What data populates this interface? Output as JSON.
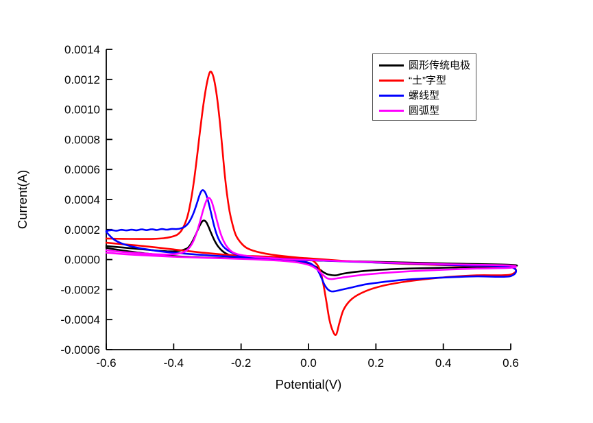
{
  "chart_data": {
    "type": "line",
    "title": "",
    "xlabel": "Potential(V)",
    "ylabel": "Current(A)",
    "xlim": [
      -0.6,
      0.6
    ],
    "ylim": [
      -0.0006,
      0.0014
    ],
    "grid": false,
    "legend_position": "top-right-inside",
    "x_ticks": [
      -0.6,
      -0.4,
      -0.2,
      0.0,
      0.2,
      0.4,
      0.6
    ],
    "x_tick_labels": [
      "-0.6",
      "-0.4",
      "-0.2",
      "0.0",
      "0.2",
      "0.4",
      "0.6"
    ],
    "y_ticks": [
      0.0014,
      0.0012,
      0.001,
      0.0008,
      0.0006,
      0.0004,
      0.0002,
      0.0,
      -0.0002,
      -0.0004,
      -0.0006
    ],
    "y_tick_labels": [
      "0.0014",
      "0.0012",
      "0.0010",
      "0.0008",
      "0.0006",
      "0.0004",
      "0.0002",
      "0.0000",
      "-0.0002",
      "-0.0004",
      "-0.0006"
    ],
    "axis_color": "#000000",
    "background": "#ffffff",
    "series": [
      {
        "id": "circular-traditional-electrode",
        "name": "圆形传统电极",
        "color": "#000000",
        "anodic_peak": {
          "x": -0.31,
          "y": 0.00026
        },
        "cathodic_peak": {
          "x": 0.08,
          "y": -0.000105
        },
        "points": [
          [
            -0.6,
            9e-05
          ],
          [
            -0.55,
            8e-05
          ],
          [
            -0.5,
            7e-05
          ],
          [
            -0.45,
            6e-05
          ],
          [
            -0.42,
            5.5e-05
          ],
          [
            -0.4,
            5.5e-05
          ],
          [
            -0.38,
            6e-05
          ],
          [
            -0.36,
            7.5e-05
          ],
          [
            -0.35,
            0.0001
          ],
          [
            -0.34,
            0.00014
          ],
          [
            -0.331,
            0.000185
          ],
          [
            -0.323,
            0.000225
          ],
          [
            -0.316,
            0.000252
          ],
          [
            -0.31,
            0.00026
          ],
          [
            -0.303,
            0.000248
          ],
          [
            -0.296,
            0.000215
          ],
          [
            -0.288,
            0.000172
          ],
          [
            -0.279,
            0.000128
          ],
          [
            -0.269,
            9e-05
          ],
          [
            -0.258,
            6.2e-05
          ],
          [
            -0.246,
            4.2e-05
          ],
          [
            -0.232,
            2.8e-05
          ],
          [
            -0.215,
            1.8e-05
          ],
          [
            -0.19,
            1.2e-05
          ],
          [
            -0.15,
            8e-06
          ],
          [
            -0.1,
            3e-06
          ],
          [
            -0.05,
            0.0
          ],
          [
            0.0,
            -5e-06
          ],
          [
            0.1,
            -1e-05
          ],
          [
            0.2,
            -1.5e-05
          ],
          [
            0.3,
            -2e-05
          ],
          [
            0.45,
            -2.8e-05
          ],
          [
            0.6,
            -3.5e-05
          ],
          [
            0.6,
            -4.5e-05
          ],
          [
            0.45,
            -5.2e-05
          ],
          [
            0.3,
            -6e-05
          ],
          [
            0.2,
            -7e-05
          ],
          [
            0.14,
            -8.2e-05
          ],
          [
            0.1,
            -9.5e-05
          ],
          [
            0.082,
            -0.000105
          ],
          [
            0.06,
            -0.0001
          ],
          [
            0.045,
            -8.5e-05
          ],
          [
            0.03,
            -6e-05
          ],
          [
            0.015,
            -4e-05
          ],
          [
            0.0,
            -2.5e-05
          ],
          [
            -0.05,
            -1e-05
          ],
          [
            -0.1,
            -2e-06
          ],
          [
            -0.15,
            3e-06
          ],
          [
            -0.22,
            8e-06
          ],
          [
            -0.3,
            1.3e-05
          ],
          [
            -0.38,
            2e-05
          ],
          [
            -0.45,
            3.3e-05
          ],
          [
            -0.5,
            4.5e-05
          ],
          [
            -0.55,
            6e-05
          ],
          [
            -0.58,
            7e-05
          ],
          [
            -0.6,
            7.8e-05
          ]
        ]
      },
      {
        "id": "cross-type",
        "name": "“土”字型",
        "color": "#ff0000",
        "anodic_peak": {
          "x": -0.292,
          "y": 0.00125
        },
        "cathodic_peak": {
          "x": 0.08,
          "y": -0.0005
        },
        "points": [
          [
            -0.6,
            0.00014
          ],
          [
            -0.55,
            0.000138
          ],
          [
            -0.5,
            0.000137
          ],
          [
            -0.46,
            0.000138
          ],
          [
            -0.43,
            0.000142
          ],
          [
            -0.41,
            0.00015
          ],
          [
            -0.39,
            0.000165
          ],
          [
            -0.375,
            0.0002
          ],
          [
            -0.36,
            0.00028
          ],
          [
            -0.35,
            0.00038
          ],
          [
            -0.34,
            0.00052
          ],
          [
            -0.33,
            0.0007
          ],
          [
            -0.32,
            0.00089
          ],
          [
            -0.31,
            0.00106
          ],
          [
            -0.3,
            0.00119
          ],
          [
            -0.292,
            0.00125
          ],
          [
            -0.284,
            0.00123
          ],
          [
            -0.276,
            0.00115
          ],
          [
            -0.267,
            0.001
          ],
          [
            -0.258,
            0.0008
          ],
          [
            -0.25,
            0.0006
          ],
          [
            -0.242,
            0.00044
          ],
          [
            -0.234,
            0.00032
          ],
          [
            -0.225,
            0.00023
          ],
          [
            -0.215,
            0.00016
          ],
          [
            -0.2,
            0.00011
          ],
          [
            -0.185,
            8e-05
          ],
          [
            -0.165,
            6e-05
          ],
          [
            -0.14,
            4.5e-05
          ],
          [
            -0.11,
            3.3e-05
          ],
          [
            -0.07,
            2.2e-05
          ],
          [
            -0.03,
            1.3e-05
          ],
          [
            0.0,
            8e-06
          ],
          [
            0.05,
            0.0
          ],
          [
            0.1,
            -8e-06
          ],
          [
            0.2,
            -2e-05
          ],
          [
            0.3,
            -3e-05
          ],
          [
            0.45,
            -4e-05
          ],
          [
            0.6,
            -5e-05
          ],
          [
            0.6,
            -0.0001
          ],
          [
            0.5,
            -0.000105
          ],
          [
            0.42,
            -0.000115
          ],
          [
            0.35,
            -0.00013
          ],
          [
            0.28,
            -0.00015
          ],
          [
            0.22,
            -0.000175
          ],
          [
            0.17,
            -0.00021
          ],
          [
            0.13,
            -0.00026
          ],
          [
            0.105,
            -0.00033
          ],
          [
            0.092,
            -0.00042
          ],
          [
            0.082,
            -0.0005
          ],
          [
            0.072,
            -0.000475
          ],
          [
            0.062,
            -0.0004
          ],
          [
            0.053,
            -0.00028
          ],
          [
            0.045,
            -0.000175
          ],
          [
            0.038,
            -0.0001
          ],
          [
            0.03,
            -5e-05
          ],
          [
            0.02,
            -2e-05
          ],
          [
            0.005,
            0.0
          ],
          [
            -0.03,
            1e-05
          ],
          [
            -0.08,
            1.5e-05
          ],
          [
            -0.13,
            2e-05
          ],
          [
            -0.19,
            2.5e-05
          ],
          [
            -0.25,
            3.3e-05
          ],
          [
            -0.31,
            4.5e-05
          ],
          [
            -0.37,
            6e-05
          ],
          [
            -0.43,
            7.5e-05
          ],
          [
            -0.49,
            9e-05
          ],
          [
            -0.54,
            0.0001
          ],
          [
            -0.58,
            0.000108
          ],
          [
            -0.6,
            0.000112
          ]
        ]
      },
      {
        "id": "spiral-type",
        "name": "螺线型",
        "color": "#0000ff",
        "anodic_peak": {
          "x": -0.314,
          "y": 0.00046
        },
        "cathodic_peak": {
          "x": 0.068,
          "y": -0.000212
        },
        "points": [
          [
            -0.6,
            0.00019
          ],
          [
            -0.585,
            0.000196
          ],
          [
            -0.57,
            0.000192
          ],
          [
            -0.555,
            0.000198
          ],
          [
            -0.54,
            0.000194
          ],
          [
            -0.525,
            0.000199
          ],
          [
            -0.51,
            0.000195
          ],
          [
            -0.495,
            0.000201
          ],
          [
            -0.48,
            0.000196
          ],
          [
            -0.465,
            0.000202
          ],
          [
            -0.45,
            0.000197
          ],
          [
            -0.435,
            0.000203
          ],
          [
            -0.42,
            0.000199
          ],
          [
            -0.405,
            0.000204
          ],
          [
            -0.39,
            0.000203
          ],
          [
            -0.378,
            0.000208
          ],
          [
            -0.368,
            0.000218
          ],
          [
            -0.358,
            0.000238
          ],
          [
            -0.349,
            0.00027
          ],
          [
            -0.34,
            0.000315
          ],
          [
            -0.331,
            0.000375
          ],
          [
            -0.323,
            0.00043
          ],
          [
            -0.317,
            0.000458
          ],
          [
            -0.311,
            0.00046
          ],
          [
            -0.304,
            0.000435
          ],
          [
            -0.296,
            0.000375
          ],
          [
            -0.288,
            0.0003
          ],
          [
            -0.28,
            0.000225
          ],
          [
            -0.272,
            0.000165
          ],
          [
            -0.263,
            0.00012
          ],
          [
            -0.252,
            8.5e-05
          ],
          [
            -0.24,
            6.2e-05
          ],
          [
            -0.226,
            4.5e-05
          ],
          [
            -0.21,
            3.2e-05
          ],
          [
            -0.185,
            2.2e-05
          ],
          [
            -0.15,
            1.5e-05
          ],
          [
            -0.1,
            8e-06
          ],
          [
            -0.05,
            2e-06
          ],
          [
            0.0,
            -3e-06
          ],
          [
            0.1,
            -1.2e-05
          ],
          [
            0.2,
            -2e-05
          ],
          [
            0.3,
            -2.7e-05
          ],
          [
            0.45,
            -3.8e-05
          ],
          [
            0.6,
            -5e-05
          ],
          [
            0.6,
            -0.00011
          ],
          [
            0.5,
            -0.000112
          ],
          [
            0.42,
            -0.000118
          ],
          [
            0.35,
            -0.000125
          ],
          [
            0.28,
            -0.000135
          ],
          [
            0.22,
            -0.00015
          ],
          [
            0.17,
            -0.000165
          ],
          [
            0.13,
            -0.000185
          ],
          [
            0.1,
            -0.0002
          ],
          [
            0.08,
            -0.00021
          ],
          [
            0.068,
            -0.000212
          ],
          [
            0.058,
            -0.0002
          ],
          [
            0.048,
            -0.00017
          ],
          [
            0.04,
            -0.00013
          ],
          [
            0.032,
            -9e-05
          ],
          [
            0.024,
            -6e-05
          ],
          [
            0.015,
            -4e-05
          ],
          [
            0.005,
            -2.5e-05
          ],
          [
            -0.01,
            -1.5e-05
          ],
          [
            -0.04,
            -5e-06
          ],
          [
            -0.08,
            3e-06
          ],
          [
            -0.13,
            1e-05
          ],
          [
            -0.19,
            1.6e-05
          ],
          [
            -0.25,
            2.2e-05
          ],
          [
            -0.31,
            3e-05
          ],
          [
            -0.37,
            4e-05
          ],
          [
            -0.43,
            5.2e-05
          ],
          [
            -0.48,
            6.8e-05
          ],
          [
            -0.52,
            8.5e-05
          ],
          [
            -0.555,
            0.000108
          ],
          [
            -0.578,
            0.000135
          ],
          [
            -0.592,
            0.000165
          ],
          [
            -0.6,
            0.000185
          ]
        ]
      },
      {
        "id": "arc-type",
        "name": "圆弧型",
        "color": "#ff00ff",
        "anodic_peak": {
          "x": -0.297,
          "y": 0.00041
        },
        "cathodic_peak": {
          "x": 0.068,
          "y": -0.00013
        },
        "points": [
          [
            -0.6,
            6.2e-05
          ],
          [
            -0.55,
            5e-05
          ],
          [
            -0.5,
            4.2e-05
          ],
          [
            -0.46,
            3.6e-05
          ],
          [
            -0.42,
            3.4e-05
          ],
          [
            -0.39,
            3.8e-05
          ],
          [
            -0.37,
            5e-05
          ],
          [
            -0.355,
            7.5e-05
          ],
          [
            -0.342,
            0.00012
          ],
          [
            -0.331,
            0.000185
          ],
          [
            -0.321,
            0.00026
          ],
          [
            -0.313,
            0.000325
          ],
          [
            -0.306,
            0.000375
          ],
          [
            -0.3,
            0.000405
          ],
          [
            -0.294,
            0.00041
          ],
          [
            -0.287,
            0.000385
          ],
          [
            -0.279,
            0.000325
          ],
          [
            -0.27,
            0.000245
          ],
          [
            -0.261,
            0.000175
          ],
          [
            -0.251,
            0.00012
          ],
          [
            -0.24,
            8e-05
          ],
          [
            -0.227,
            5.2e-05
          ],
          [
            -0.21,
            3.5e-05
          ],
          [
            -0.185,
            2.5e-05
          ],
          [
            -0.15,
            1.6e-05
          ],
          [
            -0.1,
            8e-06
          ],
          [
            -0.04,
            0.0
          ],
          [
            0.05,
            -6e-06
          ],
          [
            0.12,
            -1.2e-05
          ],
          [
            0.2,
            -1.8e-05
          ],
          [
            0.3,
            -2.5e-05
          ],
          [
            0.45,
            -3.3e-05
          ],
          [
            0.6,
            -4e-05
          ],
          [
            0.6,
            -5.5e-05
          ],
          [
            0.5,
            -6e-05
          ],
          [
            0.4,
            -6.8e-05
          ],
          [
            0.3,
            -7.8e-05
          ],
          [
            0.22,
            -9e-05
          ],
          [
            0.16,
            -0.000102
          ],
          [
            0.115,
            -0.000115
          ],
          [
            0.085,
            -0.000125
          ],
          [
            0.068,
            -0.00013
          ],
          [
            0.056,
            -0.000125
          ],
          [
            0.047,
            -0.00011
          ],
          [
            0.037,
            -9e-05
          ],
          [
            0.027,
            -6.8e-05
          ],
          [
            0.015,
            -5e-05
          ],
          [
            0.0,
            -3.5e-05
          ],
          [
            -0.03,
            -2e-05
          ],
          [
            -0.07,
            -1e-05
          ],
          [
            -0.12,
            -3e-06
          ],
          [
            -0.18,
            3e-06
          ],
          [
            -0.25,
            8e-06
          ],
          [
            -0.32,
            1.3e-05
          ],
          [
            -0.39,
            1.8e-05
          ],
          [
            -0.46,
            2.5e-05
          ],
          [
            -0.52,
            3.2e-05
          ],
          [
            -0.57,
            4e-05
          ],
          [
            -0.6,
            4.6e-05
          ]
        ]
      }
    ]
  },
  "legend": {
    "entries": [
      "圆形传统电极",
      "“土”字型",
      "螺线型",
      "圆弧型"
    ]
  }
}
